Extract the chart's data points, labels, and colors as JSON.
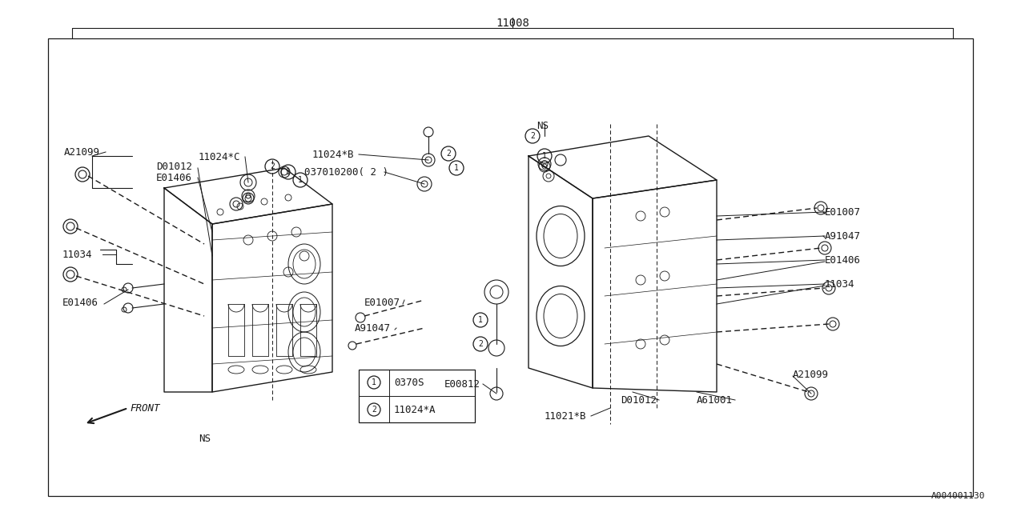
{
  "bg_color": "#ffffff",
  "line_color": "#1a1a1a",
  "title_label": "11008",
  "footer_label": "A004001130",
  "legend": [
    {
      "num": "1",
      "text": "0370S"
    },
    {
      "num": "2",
      "text": "11024*A"
    }
  ]
}
